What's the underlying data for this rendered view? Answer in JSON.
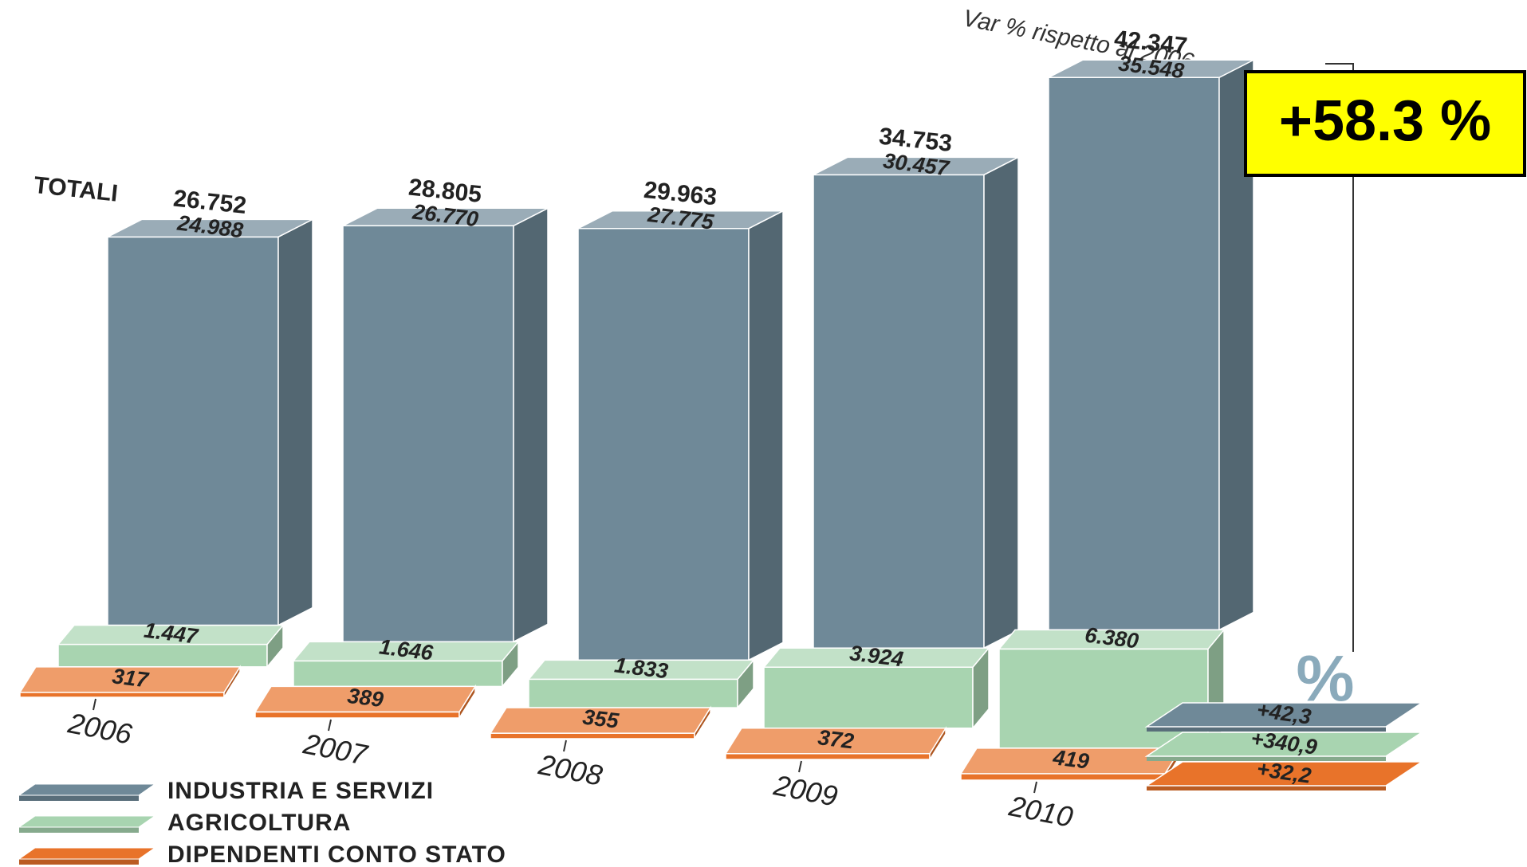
{
  "chart_data": {
    "type": "bar",
    "stacked": true,
    "categories": [
      "2006",
      "2007",
      "2008",
      "2009",
      "2010"
    ],
    "series": [
      {
        "name": "INDUSTRIA E SERVIZI",
        "color": "#6f8998",
        "values": [
          24988,
          26770,
          27775,
          30457,
          35548
        ],
        "value_labels": [
          "24.988",
          "26.770",
          "27.775",
          "30.457",
          "35.548"
        ]
      },
      {
        "name": "AGRICOLTURA",
        "color": "#a8d4b0",
        "values": [
          1447,
          1646,
          1833,
          3924,
          6380
        ],
        "value_labels": [
          "1.447",
          "1.646",
          "1.833",
          "3.924",
          "6.380"
        ]
      },
      {
        "name": "DIPENDENTI CONTO STATO",
        "color": "#e8732a",
        "values": [
          317,
          389,
          355,
          372,
          419
        ]
      }
    ],
    "totals": {
      "label": "TOTALI",
      "values": [
        26752,
        28805,
        29963,
        34753,
        42347
      ],
      "value_labels": [
        "26.752",
        "28.805",
        "29.963",
        "34.753",
        "42.347"
      ]
    },
    "change": {
      "title": "Var % rispetto al 2006",
      "unit": "%",
      "values": [
        42.3,
        340.9,
        32.2
      ],
      "value_labels": [
        "+42,3",
        "+340,9",
        "+32,2"
      ]
    },
    "highlight": {
      "value": 58.3,
      "label": "+58.3 %"
    }
  }
}
